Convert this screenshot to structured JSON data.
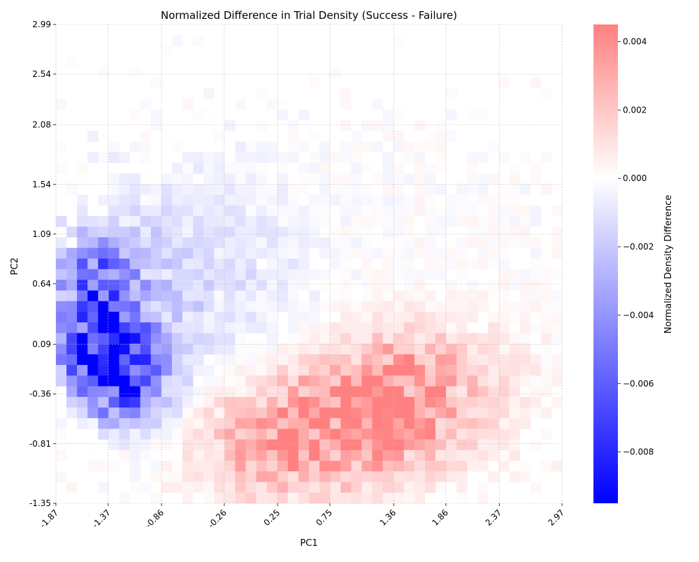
{
  "chart_data": {
    "type": "heatmap",
    "title": "Normalized Difference in Trial Density (Success - Failure)",
    "xlabel": "PC1",
    "ylabel": "PC2",
    "colorbar_label": "Normalized Density Difference",
    "x_ticks": [
      "-1.87",
      "-1.37",
      "-0.86",
      "-0.26",
      "0.25",
      "0.75",
      "1.36",
      "1.86",
      "2.37",
      "2.97"
    ],
    "y_ticks": [
      "2.99",
      "2.54",
      "2.08",
      "1.54",
      "1.09",
      "0.64",
      "0.09",
      "-0.36",
      "-0.81",
      "-1.35"
    ],
    "colorbar_ticks": [
      "0.004",
      "0.002",
      "0.000",
      "−0.002",
      "−0.004",
      "−0.006",
      "−0.008"
    ],
    "colorbar_tick_values": [
      0.004,
      0.002,
      0.0,
      -0.002,
      -0.004,
      -0.006,
      -0.008
    ],
    "color_range": [
      -0.0095,
      0.0045
    ],
    "colormap": {
      "negative": "#0000ff",
      "zero": "#ffffff",
      "positive": "#ff8080"
    },
    "grid": true,
    "x_range": [
      -1.87,
      2.97
    ],
    "y_range": [
      -1.35,
      2.99
    ],
    "approx_bins": {
      "cols": 48,
      "rows": 45
    },
    "regions_note_values": [
      {
        "pc1": -1.45,
        "pc2": 0.05,
        "value": -0.0095
      },
      {
        "pc1": -1.2,
        "pc2": -0.3,
        "value": -0.009
      },
      {
        "pc1": -1.4,
        "pc2": 0.35,
        "value": -0.0065
      },
      {
        "pc1": -1.45,
        "pc2": 0.75,
        "value": -0.0055
      },
      {
        "pc1": 0.55,
        "pc2": -0.75,
        "value": 0.003
      },
      {
        "pc1": 1.2,
        "pc2": -0.55,
        "value": 0.0035
      },
      {
        "pc1": 1.6,
        "pc2": -0.25,
        "value": 0.003
      },
      {
        "pc1": 0.05,
        "pc2": -0.85,
        "value": 0.0025
      }
    ]
  }
}
